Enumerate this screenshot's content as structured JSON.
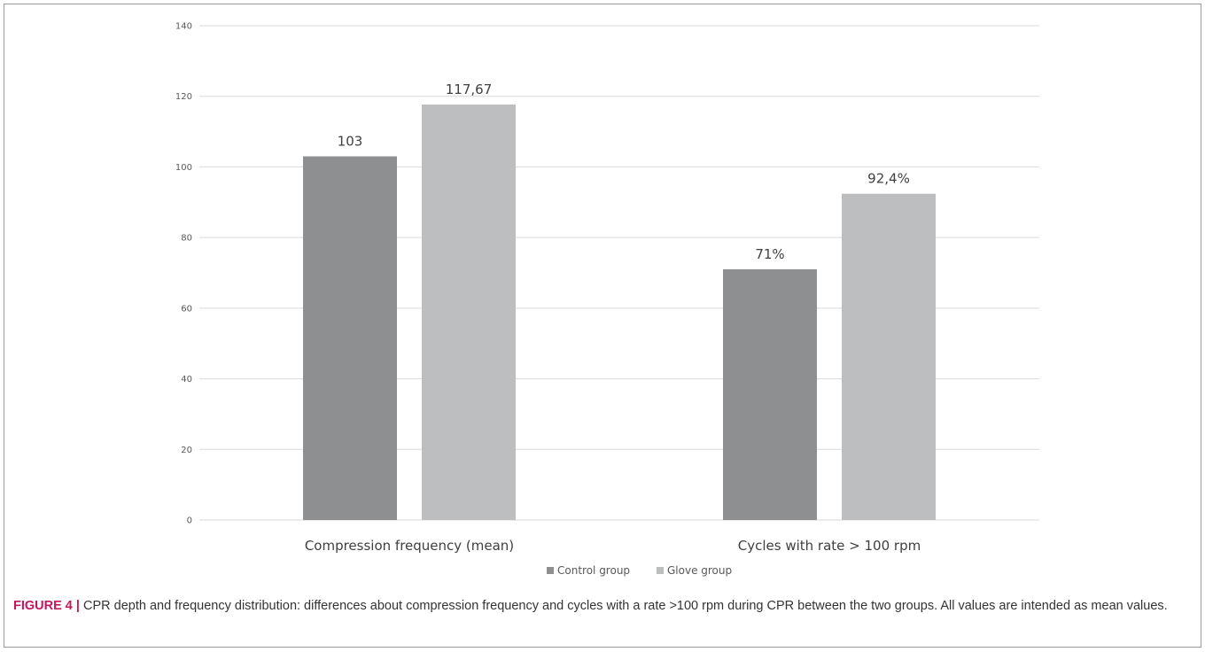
{
  "chart_data": {
    "type": "bar",
    "categories": [
      "Compression frequency (mean)",
      "Cycles with rate > 100 rpm"
    ],
    "series": [
      {
        "name": "Control group",
        "values": [
          103,
          71
        ],
        "labels": [
          "103",
          "71%"
        ],
        "color": "#8e8f91"
      },
      {
        "name": "Glove group",
        "values": [
          117.67,
          92.4
        ],
        "labels": [
          "117,67",
          "92,4%"
        ],
        "color": "#bdbec0"
      }
    ],
    "ylim": [
      0,
      140
    ],
    "yticks": [
      "0",
      "20",
      "40",
      "60",
      "80",
      "100",
      "120",
      "140"
    ],
    "grid": true,
    "legend_position": "bottom-center"
  },
  "caption": {
    "label": "FIGURE 4 |",
    "text": " CPR depth and frequency distribution: differences about compression frequency and cycles with a rate >100 rpm during CPR between the two groups. All values are intended as mean values."
  }
}
